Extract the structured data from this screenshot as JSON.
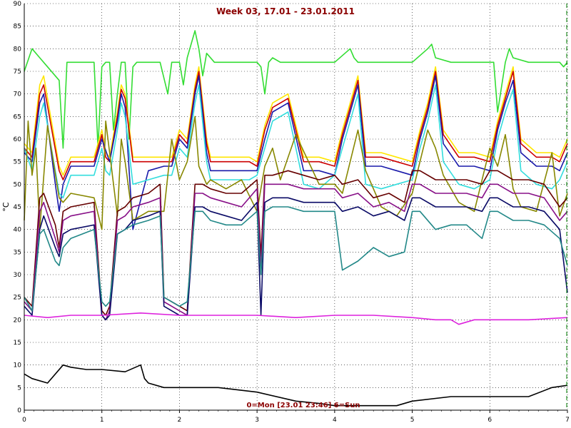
{
  "chart_data": {
    "type": "line",
    "title": "Week 03, 17.01 - 23.01.2011",
    "ylabel": "°C",
    "annotation": "0=Mon [23.01 23:46] 6=Sun",
    "xlim": [
      0,
      7
    ],
    "ylim": [
      0,
      90
    ],
    "xticks": [
      "0",
      "1",
      "2",
      "3",
      "4",
      "5",
      "6",
      "7"
    ],
    "yticks": [
      "0",
      "5",
      "10",
      "15",
      "20",
      "25",
      "30",
      "35",
      "40",
      "45",
      "50",
      "55",
      "60",
      "65",
      "70",
      "75",
      "80",
      "85",
      "90"
    ],
    "grid": true,
    "colors": {
      "background": "#ffffff",
      "grid": "#000000",
      "title": "#8b0000",
      "marker": "#008000"
    },
    "series": [
      {
        "color": "#33dd33",
        "x": [
          0,
          0.1,
          0.2,
          0.3,
          0.45,
          0.5,
          0.55,
          0.6,
          0.9,
          0.95,
          1.0,
          1.05,
          1.1,
          1.15,
          1.2,
          1.25,
          1.3,
          1.35,
          1.4,
          1.45,
          1.75,
          1.85,
          1.9,
          2.0,
          2.05,
          2.1,
          2.2,
          2.25,
          2.3,
          2.35,
          2.45,
          2.5,
          2.6,
          2.8,
          3.0,
          3.05,
          3.1,
          3.15,
          3.2,
          3.3,
          3.5,
          3.8,
          4.0,
          4.2,
          4.25,
          4.3,
          4.5,
          4.8,
          5.0,
          5.2,
          5.25,
          5.3,
          5.5,
          5.8,
          6.0,
          6.05,
          6.1,
          6.2,
          6.25,
          6.3,
          6.5,
          6.8,
          6.9,
          6.95,
          7.0
        ],
        "y": [
          75,
          80,
          78,
          76,
          73,
          58,
          77,
          77,
          77,
          58,
          76,
          77,
          77,
          62,
          70,
          77,
          77,
          60,
          76,
          77,
          77,
          70,
          77,
          77,
          72,
          78,
          84,
          80,
          74,
          79,
          77,
          77,
          77,
          77,
          77,
          76,
          70,
          77,
          78,
          77,
          77,
          77,
          77,
          80,
          78,
          77,
          77,
          77,
          77,
          80,
          81,
          78,
          77,
          77,
          77,
          77,
          66,
          77,
          80,
          78,
          77,
          77,
          77,
          76,
          77
        ]
      },
      {
        "color": "#ffe600",
        "x": [
          0,
          0.1,
          0.2,
          0.25,
          0.45,
          0.5,
          0.6,
          0.9,
          1.0,
          1.05,
          1.1,
          1.2,
          1.25,
          1.3,
          1.4,
          1.6,
          1.8,
          1.9,
          2.0,
          2.1,
          2.2,
          2.25,
          2.35,
          2.4,
          2.6,
          2.8,
          2.9,
          3.0,
          3.1,
          3.2,
          3.4,
          3.6,
          3.8,
          4.0,
          4.1,
          4.2,
          4.3,
          4.4,
          4.6,
          4.8,
          5.0,
          5.1,
          5.2,
          5.3,
          5.4,
          5.6,
          5.8,
          6.0,
          6.1,
          6.2,
          6.3,
          6.4,
          6.6,
          6.8,
          6.9,
          7.0
        ],
        "y": [
          59,
          57,
          72,
          74,
          54,
          52,
          56,
          56,
          62,
          57,
          56,
          66,
          72,
          70,
          56,
          56,
          56,
          56,
          62,
          60,
          72,
          76,
          60,
          56,
          56,
          56,
          56,
          55,
          63,
          68,
          70,
          56,
          56,
          55,
          62,
          68,
          74,
          57,
          57,
          56,
          55,
          62,
          68,
          76,
          62,
          57,
          57,
          56,
          64,
          70,
          76,
          60,
          57,
          57,
          56,
          60
        ]
      },
      {
        "color": "#cc0000",
        "x": [
          0,
          0.1,
          0.2,
          0.25,
          0.45,
          0.5,
          0.6,
          0.9,
          1.0,
          1.05,
          1.1,
          1.2,
          1.25,
          1.3,
          1.4,
          1.6,
          1.8,
          1.9,
          2.0,
          2.1,
          2.2,
          2.25,
          2.35,
          2.4,
          2.6,
          2.8,
          2.9,
          3.0,
          3.1,
          3.2,
          3.4,
          3.6,
          3.8,
          4.0,
          4.1,
          4.2,
          4.3,
          4.4,
          4.6,
          4.8,
          5.0,
          5.1,
          5.2,
          5.3,
          5.4,
          5.6,
          5.8,
          6.0,
          6.1,
          6.2,
          6.3,
          6.4,
          6.6,
          6.8,
          6.9,
          7.0
        ],
        "y": [
          58,
          56,
          70,
          72,
          53,
          51,
          55,
          55,
          61,
          56,
          55,
          65,
          71,
          69,
          55,
          55,
          55,
          55,
          61,
          59,
          71,
          75,
          59,
          55,
          55,
          55,
          55,
          54,
          62,
          67,
          69,
          55,
          55,
          54,
          61,
          67,
          73,
          56,
          56,
          55,
          54,
          61,
          67,
          75,
          61,
          56,
          56,
          55,
          63,
          69,
          75,
          59,
          56,
          56,
          55,
          59
        ]
      },
      {
        "color": "#1a1aaa",
        "x": [
          0,
          0.1,
          0.2,
          0.25,
          0.4,
          0.45,
          0.5,
          0.6,
          0.9,
          1.0,
          1.1,
          1.2,
          1.25,
          1.3,
          1.4,
          1.6,
          1.8,
          1.9,
          2.0,
          2.1,
          2.2,
          2.25,
          2.35,
          2.4,
          2.6,
          2.8,
          2.9,
          3.0,
          3.1,
          3.2,
          3.4,
          3.6,
          3.8,
          4.0,
          4.1,
          4.2,
          4.3,
          4.4,
          4.6,
          4.8,
          5.0,
          5.1,
          5.2,
          5.3,
          5.4,
          5.6,
          5.8,
          6.0,
          6.1,
          6.2,
          6.3,
          6.4,
          6.6,
          6.8,
          6.9,
          7.0
        ],
        "y": [
          57,
          55,
          68,
          70,
          50,
          44,
          50,
          54,
          54,
          60,
          55,
          64,
          70,
          67,
          40,
          53,
          54,
          54,
          60,
          58,
          70,
          74,
          57,
          53,
          53,
          53,
          53,
          53,
          60,
          66,
          68,
          53,
          53,
          52,
          60,
          66,
          72,
          54,
          54,
          53,
          52,
          60,
          66,
          74,
          59,
          54,
          54,
          53,
          62,
          68,
          73,
          57,
          54,
          54,
          53,
          57
        ]
      },
      {
        "color": "#33dddd",
        "x": [
          0,
          0.1,
          0.2,
          0.25,
          0.45,
          0.5,
          0.6,
          0.9,
          1.0,
          1.05,
          1.1,
          1.2,
          1.25,
          1.3,
          1.4,
          1.6,
          1.8,
          1.9,
          2.0,
          2.1,
          2.2,
          2.25,
          2.35,
          2.4,
          2.6,
          2.8,
          2.9,
          3.0,
          3.1,
          3.2,
          3.4,
          3.6,
          3.8,
          4.0,
          4.1,
          4.2,
          4.3,
          4.4,
          4.6,
          4.8,
          5.0,
          5.1,
          5.2,
          5.3,
          5.4,
          5.6,
          5.8,
          6.0,
          6.1,
          6.2,
          6.3,
          6.4,
          6.6,
          6.8,
          6.9,
          7.0
        ],
        "y": [
          58,
          53,
          65,
          68,
          48,
          47,
          52,
          52,
          58,
          53,
          52,
          62,
          68,
          65,
          50,
          51,
          52,
          52,
          58,
          56,
          68,
          72,
          55,
          51,
          51,
          51,
          51,
          52,
          58,
          64,
          66,
          50,
          49,
          52,
          58,
          64,
          70,
          50,
          49,
          50,
          51,
          58,
          64,
          72,
          55,
          50,
          49,
          51,
          60,
          66,
          71,
          53,
          50,
          49,
          51,
          55
        ]
      },
      {
        "color": "#888800",
        "x": [
          0,
          0.05,
          0.1,
          0.15,
          0.2,
          0.3,
          0.45,
          0.5,
          0.6,
          0.9,
          1.0,
          1.05,
          1.1,
          1.2,
          1.25,
          1.3,
          1.4,
          1.6,
          1.8,
          1.9,
          2.0,
          2.1,
          2.2,
          2.25,
          2.35,
          2.4,
          2.6,
          2.8,
          3.0,
          3.1,
          3.2,
          3.3,
          3.5,
          3.8,
          4.0,
          4.1,
          4.2,
          4.3,
          4.4,
          4.6,
          4.8,
          5.0,
          5.1,
          5.2,
          5.3,
          5.4,
          5.6,
          5.8,
          6.0,
          6.1,
          6.2,
          6.3,
          6.4,
          6.6,
          6.8,
          6.9,
          7.0
        ],
        "y": [
          42,
          64,
          52,
          58,
          40,
          63,
          47,
          46,
          48,
          47,
          40,
          64,
          57,
          43,
          60,
          55,
          42,
          44,
          44,
          60,
          51,
          55,
          65,
          54,
          50,
          51,
          49,
          51,
          44,
          54,
          58,
          51,
          61,
          50,
          50,
          48,
          55,
          62,
          53,
          45,
          43,
          48,
          55,
          62,
          58,
          52,
          46,
          44,
          58,
          54,
          61,
          49,
          45,
          44,
          57,
          43,
          48
        ]
      },
      {
        "color": "#660000",
        "x": [
          0,
          0.1,
          0.2,
          0.25,
          0.4,
          0.45,
          0.5,
          0.6,
          0.9,
          1.0,
          1.05,
          1.1,
          1.2,
          1.3,
          1.4,
          1.6,
          1.75,
          1.8,
          2.0,
          2.1,
          2.2,
          2.3,
          2.4,
          2.6,
          2.8,
          3.0,
          3.05,
          3.1,
          3.2,
          3.4,
          3.6,
          3.8,
          4.0,
          4.1,
          4.3,
          4.5,
          4.7,
          4.9,
          5.0,
          5.1,
          5.3,
          5.5,
          5.7,
          5.9,
          6.0,
          6.1,
          6.2,
          6.3,
          6.5,
          6.7,
          6.9,
          7.0
        ],
        "y": [
          25,
          23,
          47,
          48,
          41,
          36,
          44,
          45,
          46,
          22,
          21,
          23,
          44,
          45,
          47,
          48,
          50,
          25,
          23,
          22,
          50,
          50,
          49,
          48,
          48,
          51,
          34,
          52,
          52,
          53,
          52,
          51,
          52,
          50,
          51,
          47,
          48,
          46,
          53,
          53,
          51,
          51,
          51,
          50,
          53,
          53,
          52,
          51,
          51,
          50,
          45,
          47
        ]
      },
      {
        "color": "#881188",
        "x": [
          0,
          0.1,
          0.2,
          0.25,
          0.4,
          0.45,
          0.5,
          0.6,
          0.9,
          1.0,
          1.05,
          1.1,
          1.2,
          1.3,
          1.4,
          1.6,
          1.75,
          1.8,
          2.0,
          2.1,
          2.2,
          2.3,
          2.4,
          2.6,
          2.8,
          3.0,
          3.05,
          3.1,
          3.2,
          3.4,
          3.6,
          3.8,
          4.0,
          4.1,
          4.3,
          4.5,
          4.7,
          4.9,
          5.0,
          5.1,
          5.3,
          5.5,
          5.7,
          5.9,
          6.0,
          6.1,
          6.2,
          6.3,
          6.5,
          6.7,
          6.9,
          7.0
        ],
        "y": [
          24,
          22,
          44,
          46,
          38,
          35,
          42,
          43,
          44,
          21,
          20,
          22,
          42,
          43,
          45,
          46,
          47,
          24,
          22,
          21,
          48,
          48,
          47,
          46,
          45,
          49,
          31,
          50,
          50,
          50,
          49,
          49,
          49,
          47,
          48,
          45,
          46,
          44,
          50,
          50,
          48,
          48,
          48,
          47,
          50,
          50,
          49,
          48,
          48,
          47,
          42,
          44
        ]
      },
      {
        "color": "#0a0a66",
        "x": [
          0,
          0.1,
          0.2,
          0.25,
          0.4,
          0.45,
          0.5,
          0.6,
          0.9,
          1.0,
          1.05,
          1.1,
          1.2,
          1.3,
          1.4,
          1.6,
          1.75,
          1.8,
          2.0,
          2.1,
          2.2,
          2.3,
          2.4,
          2.6,
          2.8,
          3.0,
          3.05,
          3.1,
          3.2,
          3.4,
          3.6,
          3.8,
          4.0,
          4.1,
          4.3,
          4.5,
          4.7,
          4.9,
          5.0,
          5.1,
          5.3,
          5.5,
          5.7,
          5.9,
          6.0,
          6.1,
          6.2,
          6.3,
          6.5,
          6.7,
          6.9,
          7.0
        ],
        "y": [
          23,
          21,
          40,
          43,
          36,
          34,
          39,
          40,
          41,
          21,
          20,
          21,
          39,
          40,
          42,
          43,
          44,
          23,
          21,
          21,
          45,
          45,
          44,
          43,
          42,
          46,
          21,
          46,
          47,
          47,
          46,
          46,
          46,
          44,
          45,
          43,
          44,
          42,
          47,
          47,
          45,
          45,
          45,
          44,
          47,
          47,
          46,
          45,
          45,
          44,
          40,
          26
        ]
      },
      {
        "color": "#228888",
        "x": [
          0,
          0.1,
          0.2,
          0.25,
          0.4,
          0.45,
          0.5,
          0.6,
          0.9,
          1.0,
          1.05,
          1.1,
          1.2,
          1.3,
          1.4,
          1.6,
          1.75,
          1.8,
          2.0,
          2.1,
          2.2,
          2.3,
          2.4,
          2.6,
          2.8,
          3.0,
          3.05,
          3.1,
          3.2,
          3.4,
          3.6,
          3.8,
          4.0,
          4.1,
          4.3,
          4.5,
          4.7,
          4.9,
          5.0,
          5.1,
          5.3,
          5.5,
          5.7,
          5.9,
          6.0,
          6.1,
          6.2,
          6.3,
          6.5,
          6.7,
          6.9,
          7.0
        ],
        "y": [
          25,
          22,
          39,
          40,
          33,
          32,
          36,
          38,
          40,
          24,
          23,
          24,
          39,
          40,
          41,
          42,
          43,
          25,
          23,
          24,
          44,
          44,
          42,
          41,
          41,
          44,
          30,
          44,
          45,
          45,
          44,
          44,
          44,
          31,
          33,
          36,
          34,
          35,
          44,
          44,
          40,
          41,
          41,
          38,
          44,
          44,
          43,
          42,
          42,
          41,
          38,
          32
        ]
      },
      {
        "color": "#dd22dd",
        "x": [
          0,
          0.3,
          0.6,
          1.0,
          1.5,
          2.0,
          2.5,
          3.0,
          3.5,
          4.0,
          4.5,
          5.0,
          5.3,
          5.5,
          5.6,
          5.8,
          6.0,
          6.5,
          7.0
        ],
        "y": [
          21,
          20.5,
          21,
          21,
          21.5,
          21,
          21,
          21,
          20.5,
          21,
          21,
          20.5,
          20,
          20,
          19,
          20,
          20,
          20,
          20.5
        ]
      },
      {
        "color": "#000000",
        "x": [
          0,
          0.1,
          0.3,
          0.5,
          0.6,
          0.8,
          1.0,
          1.3,
          1.5,
          1.55,
          1.6,
          1.8,
          2.0,
          2.5,
          3.0,
          3.5,
          3.8,
          4.0,
          4.5,
          4.8,
          5.0,
          5.5,
          6.0,
          6.5,
          6.8,
          7.0
        ],
        "y": [
          8,
          7,
          6,
          10,
          9.5,
          9,
          9,
          8.5,
          10,
          7,
          6,
          5,
          5,
          5,
          4,
          2,
          1.5,
          1,
          1,
          1,
          2,
          3,
          3,
          3,
          5,
          5.5
        ]
      }
    ]
  }
}
